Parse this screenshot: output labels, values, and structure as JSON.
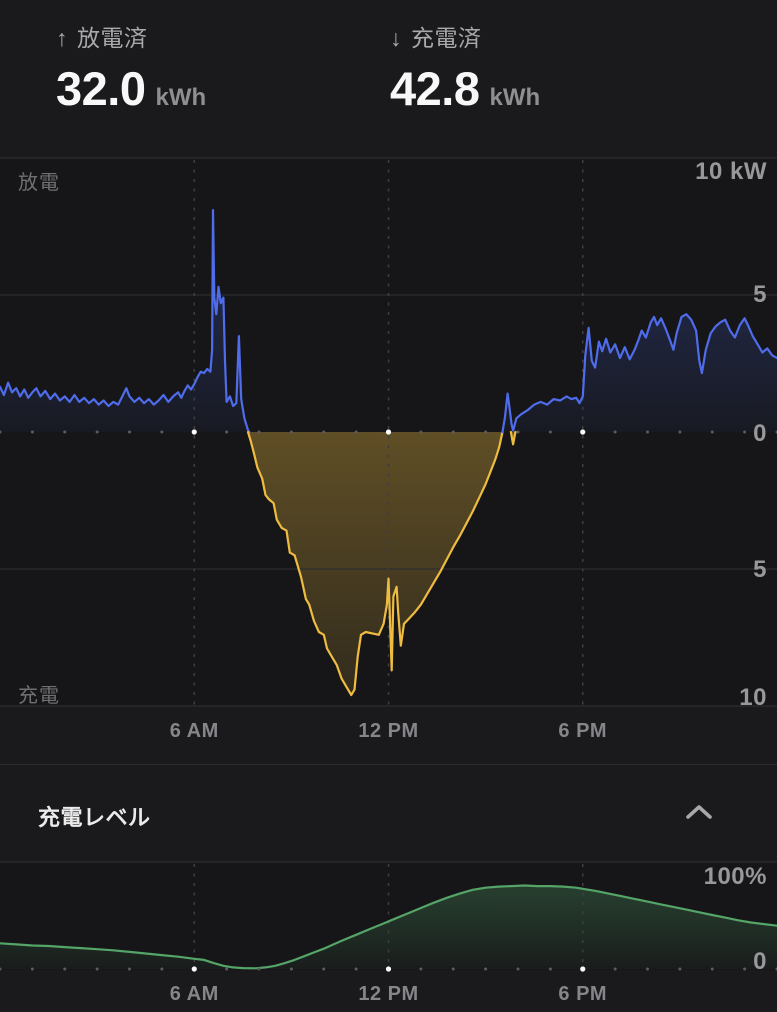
{
  "stats": {
    "discharged": {
      "arrow": "↑",
      "label": "放電済",
      "value": "32.0",
      "unit": "kWh"
    },
    "charged": {
      "arrow": "↓",
      "label": "充電済",
      "value": "42.8",
      "unit": "kWh"
    }
  },
  "battery_section": {
    "title": "充電レベル",
    "collapse_icon": "chevron-up"
  },
  "colors": {
    "discharge_line": "#4f6ceb",
    "charge_line": "#eebc40",
    "battery_line": "#55a468",
    "grid": "#2d2d30",
    "dash": "#3e3e41",
    "dot": "#5c5c60",
    "dot_bright": "#fafafa"
  },
  "chart_data": [
    {
      "type": "area",
      "title": "power",
      "x_unit": "hour",
      "x_range": [
        0,
        24
      ],
      "y_range": [
        -10,
        10
      ],
      "y_unit": "kW",
      "grid": "on",
      "left_axis_labels": {
        "top": "放電",
        "bottom": "充電"
      },
      "y_axis_labels": [
        {
          "text": "10 kW",
          "value": 10
        },
        {
          "text": "5",
          "value": 5
        },
        {
          "text": "0",
          "value": 0
        },
        {
          "text": "5",
          "value": -5
        },
        {
          "text": "10",
          "value": -10
        }
      ],
      "x_tick_hours": [
        6,
        12,
        18
      ],
      "x_tick_labels": [
        "6 AM",
        "12 PM",
        "6 PM"
      ],
      "series": [
        {
          "name": "discharge-morning",
          "color": "#4f6ceb",
          "fill": "#4565e8",
          "points": [
            [
              0,
              1.65
            ],
            [
              0.12,
              1.35
            ],
            [
              0.25,
              1.8
            ],
            [
              0.37,
              1.45
            ],
            [
              0.5,
              1.6
            ],
            [
              0.62,
              1.3
            ],
            [
              0.75,
              1.55
            ],
            [
              0.87,
              1.25
            ],
            [
              1.0,
              1.45
            ],
            [
              1.12,
              1.6
            ],
            [
              1.25,
              1.3
            ],
            [
              1.4,
              1.5
            ],
            [
              1.55,
              1.2
            ],
            [
              1.7,
              1.4
            ],
            [
              1.85,
              1.15
            ],
            [
              2.0,
              1.3
            ],
            [
              2.15,
              1.1
            ],
            [
              2.3,
              1.35
            ],
            [
              2.45,
              1.1
            ],
            [
              2.6,
              1.25
            ],
            [
              2.75,
              1.05
            ],
            [
              2.9,
              1.2
            ],
            [
              3.05,
              1.0
            ],
            [
              3.2,
              1.15
            ],
            [
              3.35,
              0.95
            ],
            [
              3.5,
              1.1
            ],
            [
              3.65,
              1.0
            ],
            [
              3.8,
              1.35
            ],
            [
              3.9,
              1.6
            ],
            [
              4.0,
              1.3
            ],
            [
              4.15,
              1.1
            ],
            [
              4.3,
              1.25
            ],
            [
              4.45,
              1.05
            ],
            [
              4.6,
              1.2
            ],
            [
              4.75,
              1.0
            ],
            [
              4.9,
              1.15
            ],
            [
              5.05,
              1.35
            ],
            [
              5.2,
              1.1
            ],
            [
              5.35,
              1.3
            ],
            [
              5.5,
              1.45
            ],
            [
              5.6,
              1.25
            ],
            [
              5.7,
              1.5
            ],
            [
              5.8,
              1.7
            ],
            [
              5.9,
              1.55
            ],
            [
              6.0,
              1.75
            ],
            [
              6.1,
              2.0
            ],
            [
              6.2,
              2.2
            ],
            [
              6.3,
              2.15
            ],
            [
              6.4,
              2.3
            ],
            [
              6.5,
              2.2
            ],
            [
              6.55,
              3.0
            ],
            [
              6.58,
              8.1
            ],
            [
              6.62,
              4.9
            ],
            [
              6.68,
              4.3
            ],
            [
              6.75,
              5.3
            ],
            [
              6.82,
              4.7
            ],
            [
              6.9,
              4.9
            ],
            [
              6.95,
              2.6
            ],
            [
              7.0,
              1.1
            ],
            [
              7.1,
              1.3
            ],
            [
              7.2,
              0.95
            ],
            [
              7.3,
              1.05
            ],
            [
              7.38,
              3.5
            ],
            [
              7.45,
              1.2
            ],
            [
              7.55,
              0.5
            ],
            [
              7.65,
              0.1
            ],
            [
              7.7,
              0
            ]
          ]
        },
        {
          "name": "charge",
          "color": "#eebc40",
          "fill": "#eebc40",
          "points": [
            [
              7.66,
              0
            ],
            [
              7.75,
              -0.35
            ],
            [
              7.85,
              -0.8
            ],
            [
              7.95,
              -1.3
            ],
            [
              8.1,
              -1.7
            ],
            [
              8.2,
              -2.3
            ],
            [
              8.3,
              -2.45
            ],
            [
              8.45,
              -2.6
            ],
            [
              8.55,
              -3.2
            ],
            [
              8.7,
              -3.5
            ],
            [
              8.85,
              -3.6
            ],
            [
              8.95,
              -4.4
            ],
            [
              9.1,
              -4.5
            ],
            [
              9.3,
              -5.3
            ],
            [
              9.45,
              -6.1
            ],
            [
              9.55,
              -6.3
            ],
            [
              9.7,
              -6.9
            ],
            [
              9.85,
              -7.3
            ],
            [
              10.0,
              -7.4
            ],
            [
              10.1,
              -7.9
            ],
            [
              10.25,
              -8.2
            ],
            [
              10.4,
              -8.5
            ],
            [
              10.55,
              -9.0
            ],
            [
              10.7,
              -9.3
            ],
            [
              10.85,
              -9.6
            ],
            [
              10.95,
              -9.4
            ],
            [
              11.05,
              -8.2
            ],
            [
              11.15,
              -7.4
            ],
            [
              11.3,
              -7.3
            ],
            [
              11.5,
              -7.35
            ],
            [
              11.7,
              -7.4
            ],
            [
              11.85,
              -7.0
            ],
            [
              11.95,
              -6.3
            ],
            [
              12.0,
              -5.35
            ],
            [
              12.05,
              -7.0
            ],
            [
              12.1,
              -8.7
            ],
            [
              12.15,
              -6.0
            ],
            [
              12.25,
              -5.65
            ],
            [
              12.3,
              -6.6
            ],
            [
              12.38,
              -7.8
            ],
            [
              12.48,
              -7.0
            ],
            [
              12.6,
              -6.85
            ],
            [
              12.8,
              -6.6
            ],
            [
              13.0,
              -6.3
            ],
            [
              13.2,
              -5.9
            ],
            [
              13.4,
              -5.5
            ],
            [
              13.6,
              -5.1
            ],
            [
              13.8,
              -4.65
            ],
            [
              14.0,
              -4.2
            ],
            [
              14.2,
              -3.8
            ],
            [
              14.4,
              -3.35
            ],
            [
              14.6,
              -2.9
            ],
            [
              14.8,
              -2.4
            ],
            [
              15.0,
              -1.9
            ],
            [
              15.15,
              -1.45
            ],
            [
              15.3,
              -1.0
            ],
            [
              15.42,
              -0.55
            ],
            [
              15.52,
              0
            ]
          ]
        },
        {
          "name": "charge-dip",
          "color": "#eebc40",
          "fill": "#eebc40",
          "points": [
            [
              15.78,
              0
            ],
            [
              15.85,
              -0.45
            ],
            [
              15.92,
              0
            ]
          ]
        },
        {
          "name": "discharge-evening",
          "color": "#4f6ceb",
          "fill": "#4565e8",
          "points": [
            [
              15.52,
              0
            ],
            [
              15.6,
              0.55
            ],
            [
              15.68,
              1.4
            ],
            [
              15.73,
              0.95
            ],
            [
              15.8,
              0.3
            ],
            [
              15.85,
              0.05
            ],
            [
              15.95,
              0.5
            ],
            [
              16.1,
              0.65
            ],
            [
              16.3,
              0.8
            ],
            [
              16.5,
              1.0
            ],
            [
              16.7,
              1.1
            ],
            [
              16.9,
              1.0
            ],
            [
              17.1,
              1.2
            ],
            [
              17.3,
              1.15
            ],
            [
              17.5,
              1.3
            ],
            [
              17.65,
              1.2
            ],
            [
              17.8,
              1.25
            ],
            [
              17.9,
              1.05
            ],
            [
              18.0,
              1.3
            ],
            [
              18.08,
              2.8
            ],
            [
              18.18,
              3.8
            ],
            [
              18.28,
              2.6
            ],
            [
              18.38,
              2.35
            ],
            [
              18.5,
              3.3
            ],
            [
              18.6,
              2.95
            ],
            [
              18.72,
              3.4
            ],
            [
              18.85,
              2.9
            ],
            [
              19.0,
              3.2
            ],
            [
              19.15,
              2.7
            ],
            [
              19.3,
              3.1
            ],
            [
              19.45,
              2.65
            ],
            [
              19.6,
              3.0
            ],
            [
              19.72,
              3.35
            ],
            [
              19.82,
              3.7
            ],
            [
              19.95,
              3.45
            ],
            [
              20.1,
              4.0
            ],
            [
              20.2,
              4.2
            ],
            [
              20.3,
              3.9
            ],
            [
              20.42,
              4.15
            ],
            [
              20.55,
              3.8
            ],
            [
              20.68,
              3.4
            ],
            [
              20.8,
              3.0
            ],
            [
              20.9,
              3.6
            ],
            [
              21.05,
              4.2
            ],
            [
              21.2,
              4.3
            ],
            [
              21.35,
              4.1
            ],
            [
              21.5,
              3.7
            ],
            [
              21.6,
              2.6
            ],
            [
              21.68,
              2.15
            ],
            [
              21.8,
              3.0
            ],
            [
              21.95,
              3.6
            ],
            [
              22.1,
              3.85
            ],
            [
              22.25,
              4.0
            ],
            [
              22.4,
              4.1
            ],
            [
              22.55,
              3.7
            ],
            [
              22.7,
              3.45
            ],
            [
              22.85,
              3.9
            ],
            [
              23.0,
              4.15
            ],
            [
              23.1,
              3.9
            ],
            [
              23.25,
              3.5
            ],
            [
              23.4,
              3.2
            ],
            [
              23.55,
              2.9
            ],
            [
              23.7,
              3.05
            ],
            [
              23.85,
              2.8
            ],
            [
              24,
              2.7
            ]
          ]
        }
      ]
    },
    {
      "type": "area",
      "title": "charge-level",
      "x_unit": "hour",
      "x_range": [
        0,
        24
      ],
      "y_range": [
        0,
        100
      ],
      "y_unit": "%",
      "grid": "on",
      "y_axis_labels": [
        {
          "text": "100%",
          "value": 100
        },
        {
          "text": "0",
          "value": 0
        }
      ],
      "x_tick_hours": [
        6,
        12,
        18
      ],
      "x_tick_labels": [
        "6 AM",
        "12 PM",
        "6 PM"
      ],
      "series": [
        {
          "name": "battery-percent",
          "color": "#55a468",
          "fill": "#4f9f63",
          "points": [
            [
              0,
              24
            ],
            [
              0.5,
              23
            ],
            [
              1,
              22
            ],
            [
              1.5,
              21.5
            ],
            [
              2,
              20.5
            ],
            [
              2.5,
              19.5
            ],
            [
              3,
              18.5
            ],
            [
              3.5,
              17.5
            ],
            [
              4,
              16
            ],
            [
              4.5,
              14.5
            ],
            [
              5,
              13
            ],
            [
              5.5,
              11.5
            ],
            [
              6,
              9.5
            ],
            [
              6.3,
              8.5
            ],
            [
              6.6,
              5.5
            ],
            [
              6.9,
              3
            ],
            [
              7.2,
              1.5
            ],
            [
              7.5,
              0.8
            ],
            [
              7.9,
              0.7
            ],
            [
              8.2,
              1.5
            ],
            [
              8.5,
              3
            ],
            [
              8.8,
              5.5
            ],
            [
              9.1,
              8.5
            ],
            [
              9.4,
              12
            ],
            [
              9.7,
              15.5
            ],
            [
              10,
              19
            ],
            [
              10.3,
              23
            ],
            [
              10.6,
              27
            ],
            [
              11,
              32
            ],
            [
              11.4,
              37
            ],
            [
              11.8,
              42
            ],
            [
              12.2,
              47
            ],
            [
              12.6,
              52
            ],
            [
              13,
              57
            ],
            [
              13.4,
              62
            ],
            [
              13.8,
              66.5
            ],
            [
              14.2,
              70.5
            ],
            [
              14.6,
              74
            ],
            [
              15,
              76
            ],
            [
              15.4,
              77
            ],
            [
              15.8,
              77.5
            ],
            [
              16.2,
              78
            ],
            [
              16.6,
              77.5
            ],
            [
              17,
              77.5
            ],
            [
              17.4,
              77
            ],
            [
              17.8,
              76
            ],
            [
              18,
              75
            ],
            [
              18.4,
              73
            ],
            [
              18.8,
              70.5
            ],
            [
              19.2,
              68
            ],
            [
              19.6,
              65.5
            ],
            [
              20,
              63
            ],
            [
              20.4,
              60.5
            ],
            [
              20.8,
              58
            ],
            [
              21.2,
              55.5
            ],
            [
              21.6,
              53
            ],
            [
              22,
              50.5
            ],
            [
              22.4,
              48
            ],
            [
              22.8,
              45.5
            ],
            [
              23.2,
              43.5
            ],
            [
              23.6,
              42
            ],
            [
              24,
              40.5
            ]
          ]
        }
      ]
    }
  ]
}
